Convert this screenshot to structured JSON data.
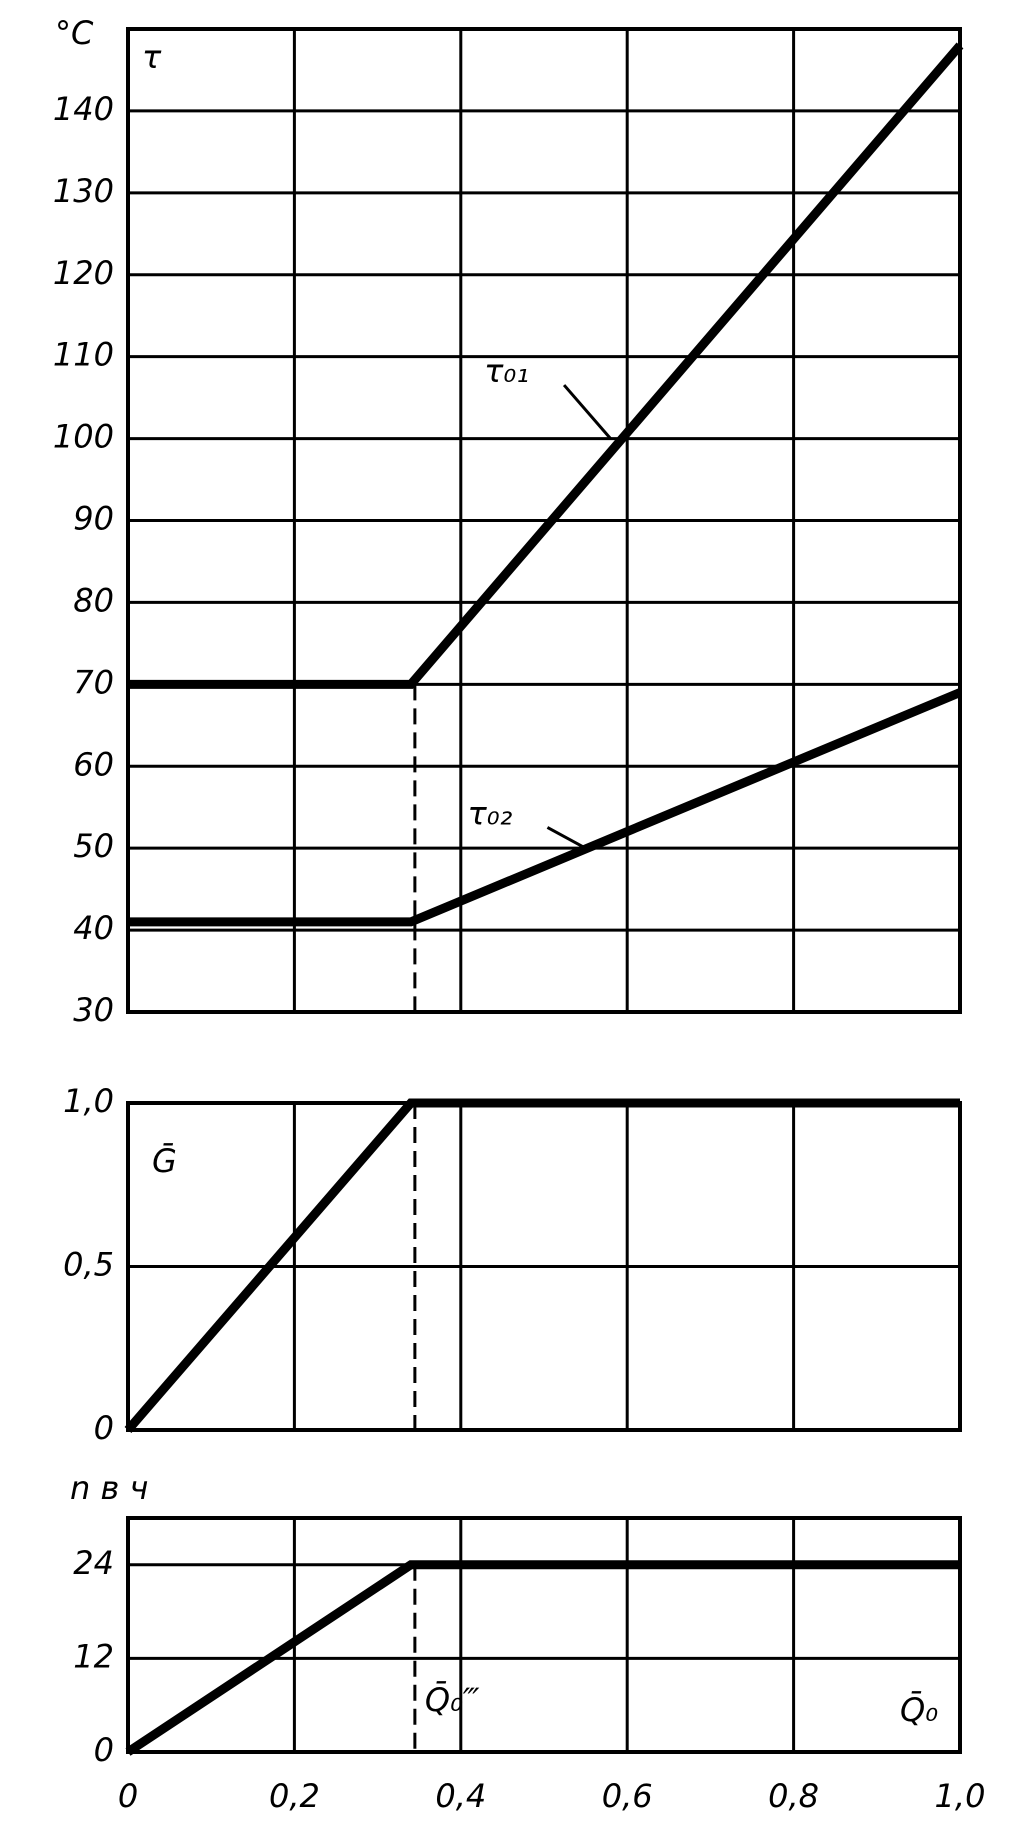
{
  "chart_data": [
    {
      "type": "line",
      "y_label": "τ",
      "y_unit": "°C",
      "x": [
        0,
        0.34,
        1.0
      ],
      "xlim": [
        0,
        1.0
      ],
      "ylim": [
        30,
        150
      ],
      "yticks": [
        30,
        40,
        50,
        60,
        70,
        80,
        90,
        100,
        110,
        120,
        130,
        140
      ],
      "grid": true,
      "series": [
        {
          "name": "τ₀₁",
          "color": "#000000",
          "values": [
            70,
            70,
            148
          ]
        },
        {
          "name": "τ₀₂",
          "color": "#000000",
          "values": [
            41,
            41,
            69
          ]
        }
      ]
    },
    {
      "type": "line",
      "y_label": "Ḡ",
      "x": [
        0,
        0.34,
        1.0
      ],
      "xlim": [
        0,
        1.0
      ],
      "ylim": [
        0,
        1.0
      ],
      "yticks": [
        0,
        {
          "value": 0.5,
          "label": "0,5"
        },
        {
          "value": 1.0,
          "label": "1,0"
        }
      ],
      "grid": true,
      "series": [
        {
          "color": "#000000",
          "values": [
            0,
            1.0,
            1.0
          ]
        }
      ]
    },
    {
      "type": "line",
      "y_label": "n в ч",
      "x_label": "Q̄₀",
      "annotation": "Q̄₀‴",
      "x": [
        0,
        0.34,
        1.0
      ],
      "xlim": [
        0,
        1.0
      ],
      "xticks": [
        0,
        {
          "value": 0.2,
          "label": "0,2"
        },
        {
          "value": 0.4,
          "label": "0,4"
        },
        {
          "value": 0.6,
          "label": "0,6"
        },
        {
          "value": 0.8,
          "label": "0,8"
        },
        {
          "value": 1.0,
          "label": "1,0"
        }
      ],
      "ylim": [
        0,
        30
      ],
      "yticks": [
        0,
        12,
        24
      ],
      "grid": true,
      "series": [
        {
          "color": "#000000",
          "values": [
            0,
            24,
            24
          ]
        }
      ]
    }
  ]
}
